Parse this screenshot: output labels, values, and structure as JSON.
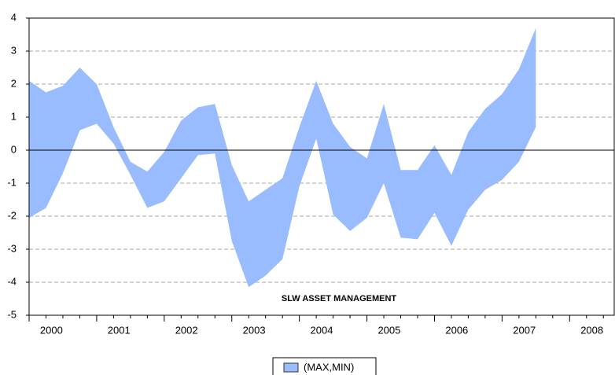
{
  "chart_data": {
    "type": "band",
    "annotation": "SLW ASSET MANAGEMENT",
    "x": [
      2000,
      2000.25,
      2000.5,
      2000.75,
      2001,
      2001.25,
      2001.5,
      2001.75,
      2002,
      2002.25,
      2002.5,
      2002.75,
      2003,
      2003.25,
      2003.5,
      2003.75,
      2004,
      2004.25,
      2004.5,
      2004.75,
      2005,
      2005.25,
      2005.5,
      2005.75,
      2006,
      2006.25,
      2006.5,
      2006.75,
      2007,
      2007.25,
      2007.5
    ],
    "series": [
      {
        "name": "(MAX,MIN)",
        "color": "#99bbff",
        "upper": [
          2.1,
          1.75,
          1.95,
          2.5,
          2.0,
          0.7,
          -0.35,
          -0.65,
          -0.05,
          0.9,
          1.3,
          1.4,
          -0.45,
          -1.55,
          -1.2,
          -0.85,
          0.7,
          2.1,
          0.8,
          0.1,
          -0.25,
          1.4,
          -0.6,
          -0.6,
          0.15,
          -0.75,
          0.55,
          1.25,
          1.7,
          2.45,
          3.7
        ],
        "lower": [
          -2.05,
          -1.75,
          -0.7,
          0.6,
          0.8,
          0.2,
          -0.75,
          -1.75,
          -1.55,
          -0.85,
          -0.15,
          -0.1,
          -2.75,
          -4.15,
          -3.8,
          -3.3,
          -1.1,
          0.35,
          -1.95,
          -2.45,
          -2.05,
          -1.0,
          -2.65,
          -2.7,
          -1.9,
          -2.9,
          -1.8,
          -1.2,
          -0.9,
          -0.35,
          0.7
        ]
      }
    ],
    "xlim": [
      2000,
      2008.66
    ],
    "xticks": [
      2000,
      2001,
      2002,
      2003,
      2004,
      2005,
      2006,
      2007,
      2008
    ],
    "ylim": [
      -5,
      4
    ],
    "yticks": [
      -5,
      -4,
      -3,
      -2,
      -1,
      0,
      1,
      2,
      3,
      4
    ],
    "grid": true
  }
}
